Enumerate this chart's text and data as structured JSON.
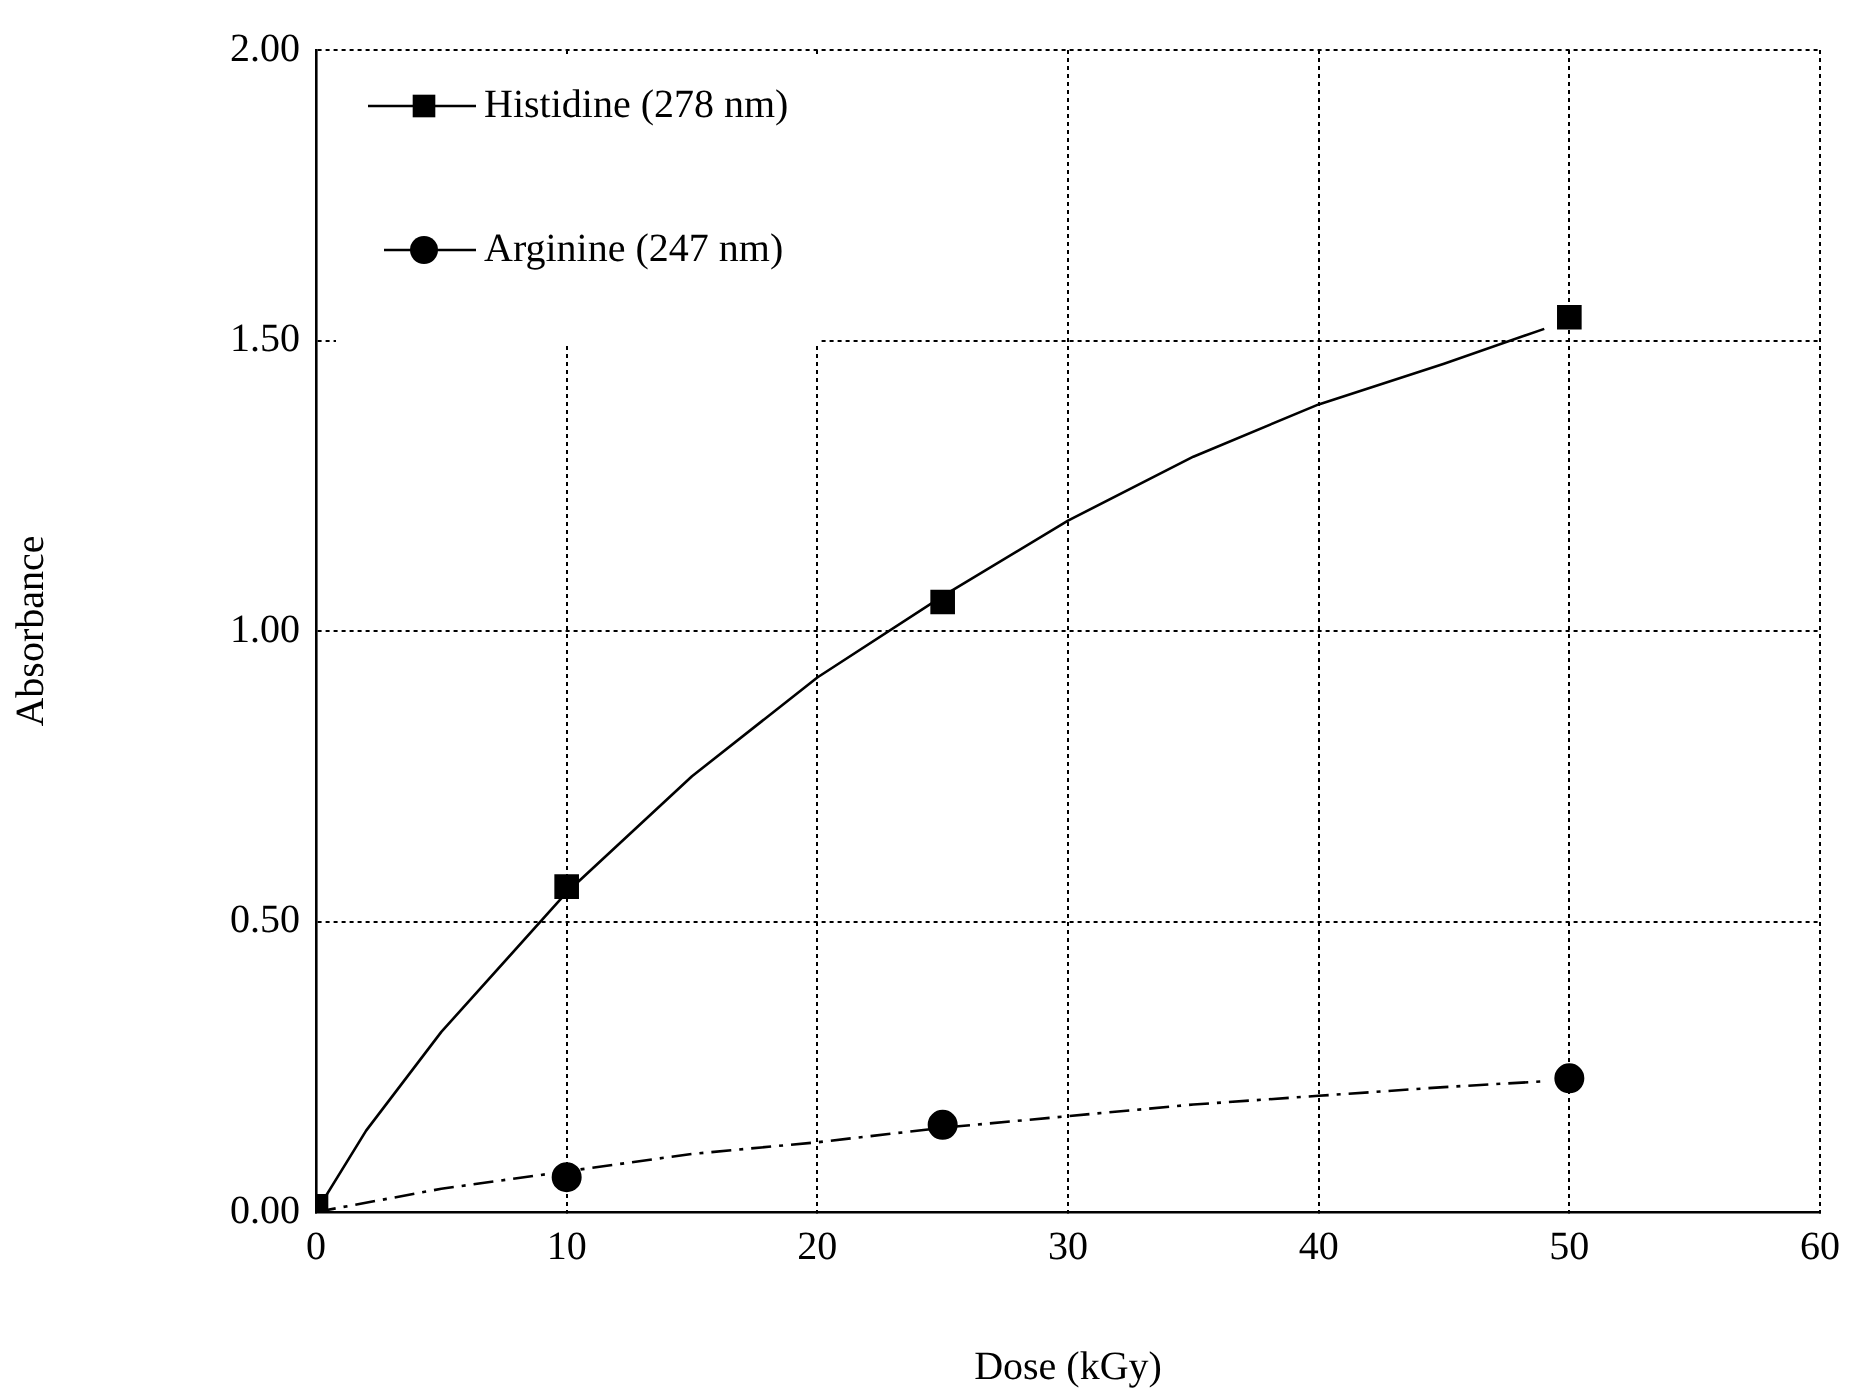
{
  "chart_data": {
    "type": "scatter",
    "xlabel": "Dose (kGy)",
    "ylabel": "Absorbance",
    "xlim": [
      0,
      60
    ],
    "xticks": [
      0,
      10,
      20,
      30,
      40,
      50,
      60
    ],
    "ylim": [
      0,
      2
    ],
    "yticks": [
      {
        "value": 0,
        "label": "0.00"
      },
      {
        "value": 0.5,
        "label": "0.50"
      },
      {
        "value": 1,
        "label": "1.00"
      },
      {
        "value": 1.5,
        "label": "1.50"
      },
      {
        "value": 2,
        "label": "2.00"
      }
    ],
    "grid": true,
    "legend": "top left",
    "series": [
      {
        "name": "Histidine (278 nm)",
        "marker": "square",
        "color": "#000000",
        "x": [
          0,
          10,
          25,
          50
        ],
        "values": [
          0.01,
          0.56,
          1.05,
          1.54
        ]
      },
      {
        "name": "Arginine (247 nm)",
        "marker": "circle",
        "color": "#000000",
        "x": [
          10,
          25,
          50
        ],
        "values": [
          0.06,
          0.15,
          0.23
        ]
      },
      {
        "type": "line",
        "marker": "none",
        "line_style": "solid",
        "color": "#000000",
        "x": [
          0,
          2,
          5,
          10,
          15,
          20,
          25,
          30,
          35,
          40,
          45,
          49
        ],
        "values": [
          0,
          0.14,
          0.31,
          0.55,
          0.75,
          0.92,
          1.06,
          1.19,
          1.3,
          1.39,
          1.46,
          1.52
        ]
      },
      {
        "type": "line",
        "marker": "none",
        "line_style": "dashed",
        "color": "#000000",
        "x": [
          0,
          5,
          10,
          15,
          20,
          25,
          30,
          35,
          40,
          45,
          49
        ],
        "values": [
          0,
          0.04,
          0.07,
          0.1,
          0.12,
          0.145,
          0.165,
          0.185,
          0.2,
          0.215,
          0.225
        ]
      }
    ]
  }
}
